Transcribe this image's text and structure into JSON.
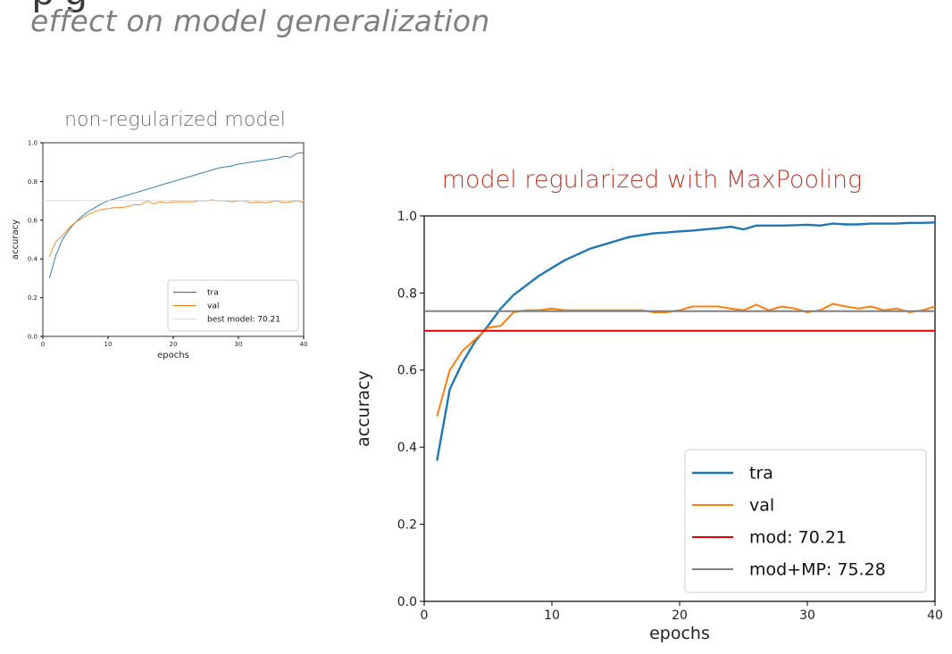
{
  "slide": {
    "title_cut": "p g",
    "subtitle": "effect on model generalization"
  },
  "colors": {
    "tra": "#1f77b4",
    "val": "#ff7f0e",
    "mod": "#e00000",
    "modmp": "#808080",
    "best": "#d9d9d9",
    "title_red": "#c0392b"
  },
  "chart_data": [
    {
      "type": "line",
      "title": "non-regularized model",
      "xlabel": "epochs",
      "ylabel": "accuracy",
      "xlim": [
        0,
        40
      ],
      "ylim": [
        0.0,
        1.0
      ],
      "xticks": [
        0,
        10,
        20,
        30,
        40
      ],
      "yticks": [
        0.0,
        0.2,
        0.4,
        0.6,
        0.8,
        1.0
      ],
      "ytick_labels": [
        "0.0",
        "0.2",
        "0.4",
        "0.6",
        "0.8",
        "1.0"
      ],
      "legend_position": "bottom-right",
      "x": [
        1,
        2,
        3,
        4,
        5,
        6,
        7,
        8,
        9,
        10,
        11,
        12,
        13,
        14,
        15,
        16,
        17,
        18,
        19,
        20,
        21,
        22,
        23,
        24,
        25,
        26,
        27,
        28,
        29,
        30,
        31,
        32,
        33,
        34,
        35,
        36,
        37,
        38,
        39,
        40
      ],
      "series": [
        {
          "name": "tra",
          "values": [
            0.3,
            0.42,
            0.5,
            0.55,
            0.59,
            0.62,
            0.645,
            0.665,
            0.685,
            0.7,
            0.71,
            0.72,
            0.73,
            0.74,
            0.75,
            0.76,
            0.77,
            0.78,
            0.79,
            0.8,
            0.81,
            0.82,
            0.83,
            0.84,
            0.85,
            0.86,
            0.87,
            0.875,
            0.88,
            0.89,
            0.895,
            0.9,
            0.905,
            0.91,
            0.915,
            0.92,
            0.93,
            0.925,
            0.945,
            0.95
          ]
        },
        {
          "name": "val",
          "values": [
            0.41,
            0.49,
            0.52,
            0.56,
            0.59,
            0.61,
            0.63,
            0.645,
            0.655,
            0.66,
            0.665,
            0.665,
            0.67,
            0.68,
            0.68,
            0.7,
            0.685,
            0.695,
            0.69,
            0.695,
            0.695,
            0.695,
            0.695,
            0.7,
            0.7,
            0.705,
            0.7,
            0.7,
            0.695,
            0.7,
            0.7,
            0.69,
            0.695,
            0.69,
            0.695,
            0.7,
            0.69,
            0.695,
            0.7,
            0.69
          ]
        },
        {
          "name": "best model: 70.21",
          "constant": 0.7021
        }
      ]
    },
    {
      "type": "line",
      "title": "model regularized with MaxPooling",
      "xlabel": "epochs",
      "ylabel": "accuracy",
      "xlim": [
        0,
        40
      ],
      "ylim": [
        0.0,
        1.0
      ],
      "xticks": [
        0,
        10,
        20,
        30,
        40
      ],
      "yticks": [
        0.0,
        0.2,
        0.4,
        0.6,
        0.8,
        1.0
      ],
      "ytick_labels": [
        "0.0",
        "0.2",
        "0.4",
        "0.6",
        "0.8",
        "1.0"
      ],
      "legend_position": "bottom-right",
      "x": [
        1,
        2,
        3,
        4,
        5,
        6,
        7,
        8,
        9,
        10,
        11,
        12,
        13,
        14,
        15,
        16,
        17,
        18,
        19,
        20,
        21,
        22,
        23,
        24,
        25,
        26,
        27,
        28,
        29,
        30,
        31,
        32,
        33,
        34,
        35,
        36,
        37,
        38,
        39,
        40
      ],
      "series": [
        {
          "name": "tra",
          "values": [
            0.365,
            0.55,
            0.62,
            0.675,
            0.715,
            0.76,
            0.795,
            0.82,
            0.845,
            0.865,
            0.885,
            0.9,
            0.915,
            0.925,
            0.935,
            0.945,
            0.95,
            0.955,
            0.957,
            0.96,
            0.962,
            0.965,
            0.968,
            0.972,
            0.965,
            0.975,
            0.975,
            0.975,
            0.976,
            0.977,
            0.975,
            0.98,
            0.978,
            0.978,
            0.98,
            0.98,
            0.98,
            0.982,
            0.982,
            0.983
          ]
        },
        {
          "name": "val",
          "values": [
            0.48,
            0.6,
            0.65,
            0.68,
            0.71,
            0.715,
            0.75,
            0.755,
            0.755,
            0.76,
            0.755,
            0.755,
            0.755,
            0.755,
            0.755,
            0.755,
            0.755,
            0.75,
            0.75,
            0.755,
            0.765,
            0.765,
            0.765,
            0.76,
            0.755,
            0.77,
            0.755,
            0.765,
            0.76,
            0.75,
            0.755,
            0.772,
            0.765,
            0.76,
            0.765,
            0.755,
            0.76,
            0.75,
            0.755,
            0.765
          ]
        },
        {
          "name": "mod: 70.21",
          "constant": 0.7021
        },
        {
          "name": "mod+MP: 75.28",
          "constant": 0.7528
        }
      ]
    }
  ]
}
